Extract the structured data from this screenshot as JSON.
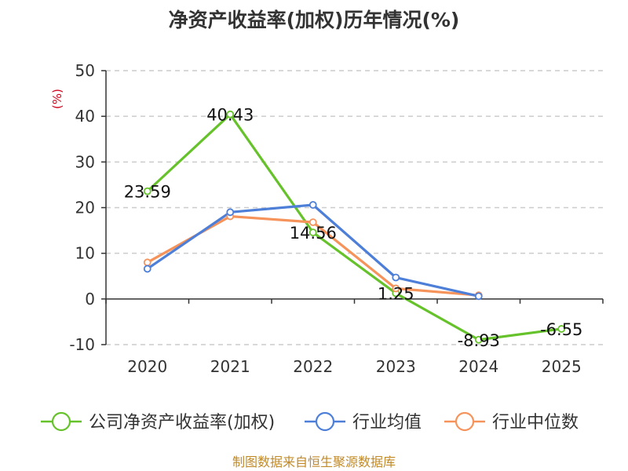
{
  "title": "净资产收益率(加权)历年情况(%)",
  "source": "制图数据来自恒生聚源数据库",
  "colors": {
    "axis": "#333333",
    "grid": "#cccccc",
    "source": "#c08a2a"
  },
  "chart_data": {
    "type": "line",
    "title": "净资产收益率(加权)历年情况(%)",
    "unit_label": "(%)",
    "unit_color": "#d0021b",
    "categories": [
      "2020",
      "2021",
      "2022",
      "2023",
      "2024",
      "2025"
    ],
    "ylim": [
      -10,
      50
    ],
    "yticks": [
      50,
      40,
      30,
      20,
      10,
      0,
      -10
    ],
    "grid": true,
    "legend_position": "bottom",
    "series": [
      {
        "name": "公司净资产收益率(加权)",
        "color": "#66c22a",
        "values": [
          23.59,
          40.43,
          14.56,
          1.25,
          -8.93,
          -6.55
        ],
        "labels": [
          "23.59",
          "40.43",
          "14.56",
          "1.25",
          "-8.93",
          "-6.55"
        ]
      },
      {
        "name": "行业均值",
        "color": "#4d7fd8",
        "values": [
          6.6,
          19.0,
          20.6,
          4.7,
          0.6,
          null
        ]
      },
      {
        "name": "行业中位数",
        "color": "#f5935a",
        "values": [
          8.0,
          18.1,
          16.8,
          2.3,
          0.8,
          null
        ]
      }
    ]
  }
}
